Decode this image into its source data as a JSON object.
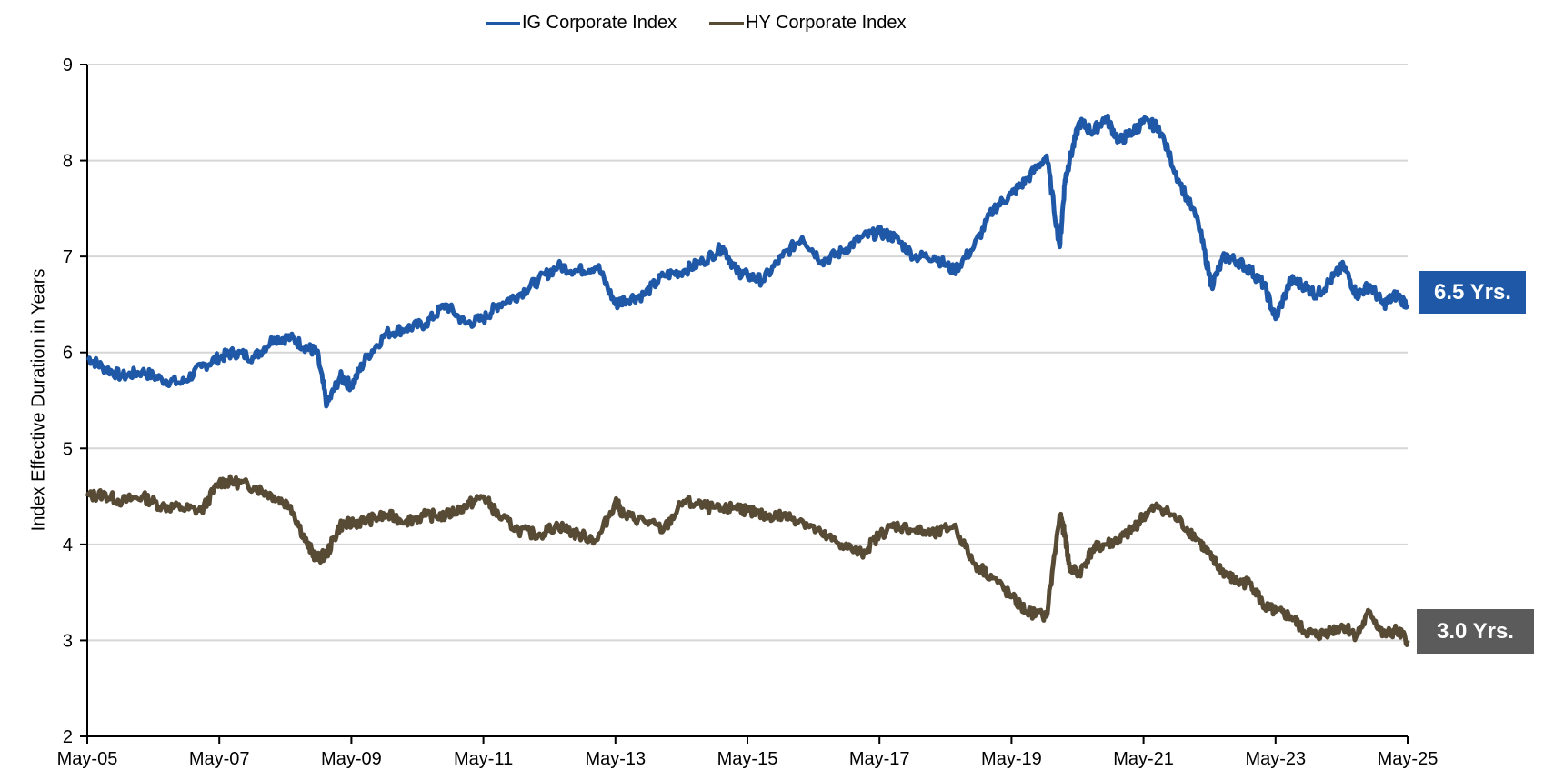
{
  "colors": {
    "ig": "#1f58a6",
    "hy": "#574b36",
    "grid": "#d6d6d6",
    "axis": "#000000",
    "ig_label_bg": "#1f58a6",
    "hy_label_bg": "#5a5b5a"
  },
  "legend": {
    "ig": "IG Corporate Index",
    "hy": "HY Corporate Index"
  },
  "end_labels": {
    "ig": "6.5 Yrs.",
    "hy": "3.0 Yrs."
  },
  "chart_data": {
    "type": "line",
    "title": "",
    "xlabel": "",
    "ylabel": "Index Effective Duration in Years",
    "ylim": [
      2,
      9
    ],
    "yticks": [
      2,
      3,
      4,
      5,
      6,
      7,
      8,
      9
    ],
    "xlim": [
      "May-05",
      "May-25"
    ],
    "xticks": [
      "May-05",
      "May-07",
      "May-09",
      "May-11",
      "May-13",
      "May-15",
      "May-17",
      "May-19",
      "May-21",
      "May-23",
      "May-25"
    ],
    "grid": "horizontal",
    "legend_position": "top",
    "x": [
      2005.37,
      2005.6,
      2005.9,
      2006.2,
      2006.5,
      2006.8,
      2007.1,
      2007.37,
      2007.6,
      2007.9,
      2008.2,
      2008.45,
      2008.7,
      2008.85,
      2009.0,
      2009.2,
      2009.37,
      2009.6,
      2009.9,
      2010.2,
      2010.5,
      2010.8,
      2011.1,
      2011.37,
      2011.6,
      2011.9,
      2012.2,
      2012.5,
      2012.8,
      2013.1,
      2013.37,
      2013.5,
      2013.8,
      2014.1,
      2014.4,
      2014.7,
      2015.0,
      2015.2,
      2015.37,
      2015.6,
      2015.9,
      2016.2,
      2016.5,
      2016.8,
      2017.1,
      2017.37,
      2017.6,
      2017.9,
      2018.2,
      2018.5,
      2018.8,
      2019.1,
      2019.37,
      2019.6,
      2019.9,
      2020.1,
      2020.18,
      2020.25,
      2020.4,
      2020.6,
      2020.8,
      2021.0,
      2021.2,
      2021.37,
      2021.6,
      2021.9,
      2022.2,
      2022.4,
      2022.6,
      2022.8,
      2023.0,
      2023.2,
      2023.37,
      2023.6,
      2023.8,
      2024.0,
      2024.2,
      2024.4,
      2024.6,
      2024.8,
      2025.0,
      2025.2,
      2025.37
    ],
    "series": [
      {
        "name": "IG Corporate Index",
        "end_value": 6.5,
        "values": [
          5.95,
          5.85,
          5.75,
          5.8,
          5.72,
          5.68,
          5.85,
          5.95,
          6.0,
          5.95,
          6.15,
          6.15,
          6.05,
          6.0,
          5.45,
          5.75,
          5.65,
          5.95,
          6.2,
          6.25,
          6.3,
          6.5,
          6.3,
          6.35,
          6.5,
          6.6,
          6.75,
          6.9,
          6.85,
          6.9,
          6.5,
          6.55,
          6.6,
          6.8,
          6.85,
          6.95,
          7.1,
          6.85,
          6.8,
          6.75,
          7.0,
          7.2,
          6.95,
          7.05,
          7.2,
          7.25,
          7.2,
          7.0,
          7.0,
          6.85,
          7.1,
          7.5,
          7.65,
          7.8,
          8.05,
          7.1,
          7.8,
          8.0,
          8.4,
          8.3,
          8.45,
          8.2,
          8.3,
          8.4,
          8.35,
          7.8,
          7.35,
          6.7,
          7.0,
          6.95,
          6.85,
          6.7,
          6.35,
          6.75,
          6.7,
          6.6,
          6.75,
          6.9,
          6.6,
          6.7,
          6.5,
          6.6,
          6.5
        ]
      },
      {
        "name": "HY Corporate Index",
        "end_value": 3.0,
        "values": [
          4.5,
          4.52,
          4.45,
          4.5,
          4.4,
          4.38,
          4.35,
          4.65,
          4.65,
          4.6,
          4.5,
          4.4,
          4.0,
          3.85,
          3.9,
          4.2,
          4.22,
          4.25,
          4.3,
          4.25,
          4.3,
          4.3,
          4.4,
          4.5,
          4.3,
          4.15,
          4.1,
          4.2,
          4.1,
          4.05,
          4.45,
          4.3,
          4.25,
          4.15,
          4.45,
          4.4,
          4.35,
          4.4,
          4.35,
          4.3,
          4.3,
          4.25,
          4.1,
          4.0,
          3.9,
          4.1,
          4.2,
          4.15,
          4.1,
          4.2,
          3.8,
          3.65,
          3.45,
          3.3,
          3.25,
          4.3,
          4.1,
          3.75,
          3.7,
          3.95,
          4.0,
          4.05,
          4.15,
          4.3,
          4.4,
          4.25,
          4.05,
          3.85,
          3.7,
          3.6,
          3.6,
          3.35,
          3.3,
          3.25,
          3.1,
          3.05,
          3.1,
          3.15,
          3.05,
          3.3,
          3.05,
          3.1,
          3.0
        ]
      }
    ]
  }
}
